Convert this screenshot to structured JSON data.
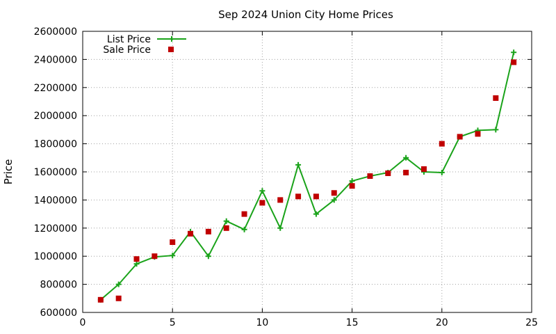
{
  "chart_data": {
    "type": "line",
    "title": "Sep 2024 Union City Home Prices",
    "xlabel": "",
    "ylabel": "Price",
    "xlim": [
      0,
      25
    ],
    "ylim": [
      600000,
      2600000
    ],
    "x_ticks": [
      0,
      5,
      10,
      15,
      20,
      25
    ],
    "y_ticks": [
      600000,
      800000,
      1000000,
      1200000,
      1400000,
      1600000,
      1800000,
      2000000,
      2200000,
      2400000,
      2600000
    ],
    "grid": true,
    "legend_position": "top-left",
    "series": [
      {
        "name": "List Price",
        "style": "line-with-plus-markers",
        "color": "#1aa31a",
        "x": [
          1,
          2,
          3,
          4,
          5,
          6,
          7,
          8,
          9,
          10,
          11,
          12,
          13,
          14,
          15,
          16,
          17,
          18,
          19,
          20,
          21,
          22,
          23,
          24
        ],
        "values": [
          690000,
          800000,
          945000,
          995000,
          1005000,
          1175000,
          1000000,
          1250000,
          1190000,
          1465000,
          1200000,
          1650000,
          1300000,
          1400000,
          1535000,
          1570000,
          1595000,
          1700000,
          1600000,
          1595000,
          1850000,
          1895000,
          1900000,
          2450000
        ]
      },
      {
        "name": "Sale Price",
        "style": "square-markers",
        "color": "#c00000",
        "x": [
          1,
          2,
          3,
          4,
          5,
          6,
          7,
          8,
          9,
          10,
          11,
          12,
          13,
          14,
          15,
          16,
          17,
          18,
          19,
          20,
          21,
          22,
          23,
          24
        ],
        "values": [
          690000,
          700000,
          980000,
          1000000,
          1100000,
          1160000,
          1175000,
          1200000,
          1300000,
          1380000,
          1400000,
          1425000,
          1425000,
          1450000,
          1500000,
          1570000,
          1590000,
          1595000,
          1620000,
          1800000,
          1850000,
          1870000,
          2125000,
          2380000
        ]
      }
    ]
  }
}
